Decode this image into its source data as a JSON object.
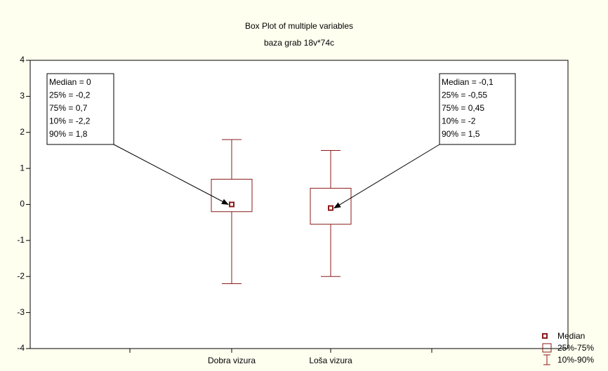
{
  "chart_data": {
    "type": "box",
    "title": "Box Plot of multiple variables",
    "subtitle": "baza grab 18v*74c",
    "categories": [
      "Dobra vizura",
      "Loša vizura"
    ],
    "median": [
      0,
      -0.1
    ],
    "q1": [
      -0.2,
      -0.55
    ],
    "q3": [
      0.7,
      0.45
    ],
    "p10": [
      -2.2,
      -2
    ],
    "p90": [
      1.8,
      1.5
    ],
    "color": "#8b1a1a",
    "ylim": [
      -4,
      4
    ],
    "yticks": [
      -4,
      -3,
      -2,
      -1,
      0,
      1,
      2,
      3,
      4
    ],
    "grid": false,
    "legend": [
      "Median",
      "25%-75%",
      "10%-90%"
    ],
    "legend_position": "lower right",
    "annotations": [
      {
        "lines": [
          "Median = 0",
          "25% = -0,2",
          "75% = 0,7",
          "10% = -2,2",
          "90% = 1,8"
        ]
      },
      {
        "lines": [
          "Median = -0,1",
          "25% = -0,55",
          "75% = 0,45",
          "10% = -2",
          "90% = 1,5"
        ]
      }
    ]
  }
}
